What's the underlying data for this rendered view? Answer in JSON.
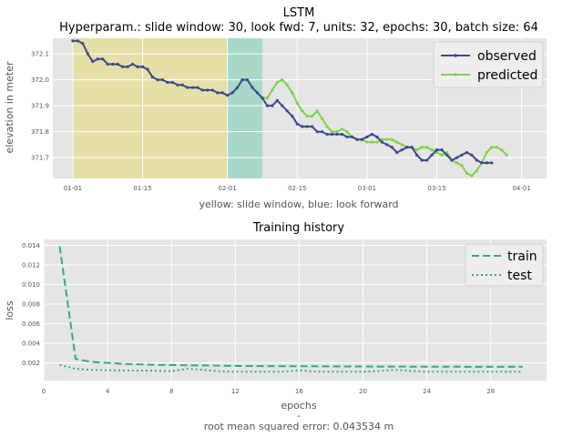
{
  "chart_data": [
    {
      "type": "line",
      "title": "LSTM",
      "subtitle": "Hyperparam.: slide window: 30, look fwd: 7, units: 32, epochs: 30, batch size: 64",
      "xlabel": "yellow: slide window, blue: look forward",
      "ylabel": "elevation in meter",
      "ylim": [
        371.62,
        372.16
      ],
      "x_ticks": [
        "01-01",
        "01-15",
        "02-01",
        "02-15",
        "03-01",
        "03-15",
        "04-01"
      ],
      "y_ticks": [
        "371.7",
        "371.8",
        "371.9",
        "372.0",
        "372.1"
      ],
      "grid": true,
      "legend": "top-right",
      "shaded_regions": [
        {
          "label": "slide window",
          "start_day": 0,
          "end_day": 31,
          "color": "#e6e0a8"
        },
        {
          "label": "look forward",
          "start_day": 31,
          "end_day": 38,
          "color": "#a8d9c8"
        }
      ],
      "series": [
        {
          "name": "observed",
          "color": "#3b4b8c",
          "x_start": "01-01",
          "values": [
            372.15,
            372.15,
            372.14,
            372.1,
            372.07,
            372.08,
            372.08,
            372.06,
            372.06,
            372.06,
            372.05,
            372.05,
            372.06,
            372.05,
            372.05,
            372.04,
            372.01,
            372.0,
            372.0,
            371.99,
            371.99,
            371.98,
            371.98,
            371.97,
            371.97,
            371.97,
            371.96,
            371.96,
            371.96,
            371.95,
            371.95,
            371.94,
            371.95,
            371.97,
            372.0,
            372.0,
            371.97,
            371.95,
            371.93,
            371.9,
            371.9,
            371.92,
            371.9,
            371.88,
            371.86,
            371.83,
            371.82,
            371.82,
            371.82,
            371.8,
            371.8,
            371.79,
            371.79,
            371.79,
            371.79,
            371.78,
            371.78,
            371.77,
            371.77,
            371.78,
            371.79,
            371.78,
            371.76,
            371.75,
            371.74,
            371.72,
            371.73,
            371.74,
            371.74,
            371.71,
            371.69,
            371.69,
            371.71,
            371.73,
            371.73,
            371.71,
            371.69,
            371.7,
            371.71,
            371.72,
            371.71,
            371.69,
            371.68,
            371.68,
            371.68
          ],
          "label_note": ""
        },
        {
          "name": "predicted",
          "color": "#7ed348",
          "x_start": "02-08",
          "values": [
            371.93,
            371.93,
            371.96,
            371.99,
            372.0,
            371.98,
            371.95,
            371.91,
            371.88,
            371.86,
            371.86,
            371.88,
            371.85,
            371.82,
            371.8,
            371.8,
            371.81,
            371.8,
            371.78,
            371.77,
            371.77,
            371.76,
            371.76,
            371.76,
            371.77,
            371.77,
            371.77,
            371.76,
            371.75,
            371.74,
            371.74,
            371.73,
            371.74,
            371.74,
            371.73,
            371.72,
            371.71,
            371.72,
            371.69,
            371.68,
            371.67,
            371.64,
            371.63,
            371.65,
            371.68,
            371.72,
            371.74,
            371.74,
            371.73,
            371.71
          ]
        }
      ]
    },
    {
      "type": "line",
      "title": "Training history",
      "xlabel": "epochs",
      "ylabel": "loss",
      "xlim": [
        0,
        31.5
      ],
      "ylim": [
        0.0002,
        0.0146
      ],
      "x_ticks": [
        0,
        4,
        8,
        12,
        16,
        20,
        24,
        28
      ],
      "y_ticks": [
        "0.002",
        "0.004",
        "0.006",
        "0.008",
        "0.010",
        "0.012",
        "0.014"
      ],
      "grid": true,
      "legend": "top-right",
      "footer": [
        "-",
        "root mean squared error: 0.043534 m"
      ],
      "series": [
        {
          "name": "train",
          "color": "#2bae7c",
          "style": "dashed",
          "x": [
            1,
            2,
            3,
            4,
            5,
            6,
            7,
            8,
            9,
            10,
            11,
            12,
            13,
            14,
            15,
            16,
            17,
            18,
            19,
            20,
            21,
            22,
            23,
            24,
            25,
            26,
            27,
            28,
            29,
            30
          ],
          "values": [
            0.0139,
            0.0024,
            0.0021,
            0.002,
            0.0019,
            0.00185,
            0.0018,
            0.00178,
            0.00176,
            0.00174,
            0.00172,
            0.0017,
            0.00169,
            0.00168,
            0.00167,
            0.00166,
            0.00166,
            0.00165,
            0.00164,
            0.00164,
            0.00163,
            0.00163,
            0.00162,
            0.00162,
            0.00161,
            0.00161,
            0.0016,
            0.0016,
            0.0016,
            0.0016
          ]
        },
        {
          "name": "test",
          "color": "#2bae7c",
          "style": "dotted",
          "x": [
            1,
            2,
            3,
            4,
            5,
            6,
            7,
            8,
            9,
            10,
            11,
            12,
            13,
            14,
            15,
            16,
            17,
            18,
            19,
            20,
            21,
            22,
            23,
            24,
            25,
            26,
            27,
            28,
            29,
            30
          ],
          "values": [
            0.0018,
            0.0014,
            0.0013,
            0.00125,
            0.00122,
            0.00122,
            0.0012,
            0.00115,
            0.0014,
            0.0013,
            0.00115,
            0.0011,
            0.0011,
            0.0011,
            0.0011,
            0.00125,
            0.00112,
            0.0011,
            0.0011,
            0.0011,
            0.00118,
            0.0013,
            0.00118,
            0.0011,
            0.0011,
            0.0011,
            0.0011,
            0.0011,
            0.0011,
            0.0011
          ]
        }
      ]
    }
  ]
}
